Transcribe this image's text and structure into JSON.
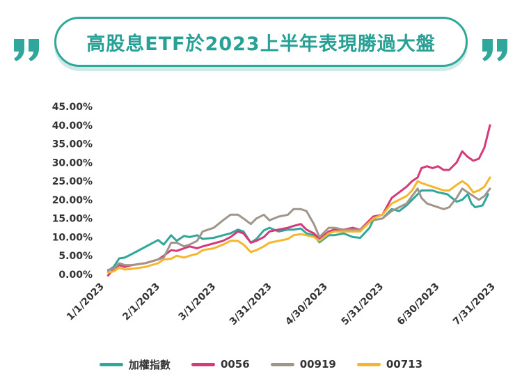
{
  "title": "高股息ETF於2023上半年表現勝過大盤",
  "colors": {
    "accent": "#2fa79a"
  },
  "chart_data": {
    "type": "line",
    "x_ticks": [
      "1/1/2023",
      "2/1/2023",
      "3/1/2023",
      "3/31/2023",
      "4/30/2023",
      "5/31/2023",
      "6/30/2023",
      "7/31/2023"
    ],
    "x_range": [
      "2023-01-01",
      "2023-07-31"
    ],
    "y_ticks": [
      "0.00%",
      "5.00%",
      "10.00%",
      "15.00%",
      "20.00%",
      "25.00%",
      "30.00%",
      "35.00%",
      "40.00%",
      "45.00%"
    ],
    "ylim": [
      0,
      45
    ],
    "grid": false,
    "legend_position": "bottom",
    "series": [
      {
        "name": "加權指數",
        "color": "#2fa79a",
        "points": [
          [
            "2023-01-03",
            1.0
          ],
          [
            "2023-01-06",
            2.0
          ],
          [
            "2023-01-09",
            4.3
          ],
          [
            "2023-01-12",
            4.5
          ],
          [
            "2023-01-16",
            5.5
          ],
          [
            "2023-01-30",
            9.2
          ],
          [
            "2023-02-02",
            8.0
          ],
          [
            "2023-02-06",
            10.5
          ],
          [
            "2023-02-09",
            9.0
          ],
          [
            "2023-02-13",
            10.3
          ],
          [
            "2023-02-16",
            10.0
          ],
          [
            "2023-02-20",
            10.5
          ],
          [
            "2023-02-23",
            9.5
          ],
          [
            "2023-03-01",
            9.8
          ],
          [
            "2023-03-06",
            10.5
          ],
          [
            "2023-03-10",
            11.0
          ],
          [
            "2023-03-14",
            12.0
          ],
          [
            "2023-03-17",
            11.5
          ],
          [
            "2023-03-21",
            8.5
          ],
          [
            "2023-03-24",
            9.5
          ],
          [
            "2023-03-28",
            11.8
          ],
          [
            "2023-03-31",
            12.5
          ],
          [
            "2023-04-05",
            11.5
          ],
          [
            "2023-04-10",
            12.0
          ],
          [
            "2023-04-13",
            12.0
          ],
          [
            "2023-04-17",
            12.3
          ],
          [
            "2023-04-20",
            11.0
          ],
          [
            "2023-04-24",
            10.5
          ],
          [
            "2023-04-27",
            8.6
          ],
          [
            "2023-05-02",
            10.5
          ],
          [
            "2023-05-05",
            10.5
          ],
          [
            "2023-05-10",
            11.0
          ],
          [
            "2023-05-15",
            10.0
          ],
          [
            "2023-05-19",
            9.8
          ],
          [
            "2023-05-24",
            12.5
          ],
          [
            "2023-05-26",
            14.5
          ],
          [
            "2023-05-31",
            15.0
          ],
          [
            "2023-06-05",
            17.5
          ],
          [
            "2023-06-09",
            17.0
          ],
          [
            "2023-06-13",
            18.5
          ],
          [
            "2023-06-16",
            20.0
          ],
          [
            "2023-06-19",
            21.5
          ],
          [
            "2023-06-21",
            22.5
          ],
          [
            "2023-06-27",
            22.5
          ],
          [
            "2023-06-30",
            22.0
          ],
          [
            "2023-07-05",
            21.5
          ],
          [
            "2023-07-10",
            19.5
          ],
          [
            "2023-07-13",
            20.0
          ],
          [
            "2023-07-16",
            21.5
          ],
          [
            "2023-07-18",
            19.0
          ],
          [
            "2023-07-20",
            18.0
          ],
          [
            "2023-07-24",
            18.5
          ],
          [
            "2023-07-27",
            21.5
          ]
        ]
      },
      {
        "name": "0056",
        "color": "#d6397a",
        "points": [
          [
            "2023-01-03",
            -0.3
          ],
          [
            "2023-01-06",
            1.5
          ],
          [
            "2023-01-09",
            2.5
          ],
          [
            "2023-01-12",
            2.0
          ],
          [
            "2023-01-16",
            2.5
          ],
          [
            "2023-01-23",
            3.0
          ],
          [
            "2023-01-30",
            4.0
          ],
          [
            "2023-02-02",
            5.0
          ],
          [
            "2023-02-06",
            6.5
          ],
          [
            "2023-02-09",
            6.3
          ],
          [
            "2023-02-13",
            7.0
          ],
          [
            "2023-02-16",
            7.5
          ],
          [
            "2023-02-20",
            7.0
          ],
          [
            "2023-02-23",
            7.5
          ],
          [
            "2023-03-01",
            8.3
          ],
          [
            "2023-03-06",
            9.0
          ],
          [
            "2023-03-10",
            10.0
          ],
          [
            "2023-03-14",
            11.5
          ],
          [
            "2023-03-17",
            11.0
          ],
          [
            "2023-03-21",
            8.5
          ],
          [
            "2023-03-24",
            9.0
          ],
          [
            "2023-03-28",
            10.0
          ],
          [
            "2023-03-31",
            11.5
          ],
          [
            "2023-04-05",
            12.0
          ],
          [
            "2023-04-10",
            12.5
          ],
          [
            "2023-04-13",
            13.0
          ],
          [
            "2023-04-17",
            13.5
          ],
          [
            "2023-04-20",
            12.0
          ],
          [
            "2023-04-24",
            11.0
          ],
          [
            "2023-04-27",
            9.5
          ],
          [
            "2023-05-02",
            11.5
          ],
          [
            "2023-05-05",
            12.0
          ],
          [
            "2023-05-10",
            12.0
          ],
          [
            "2023-05-15",
            12.5
          ],
          [
            "2023-05-19",
            12.0
          ],
          [
            "2023-05-24",
            14.5
          ],
          [
            "2023-05-26",
            15.5
          ],
          [
            "2023-05-31",
            16.0
          ],
          [
            "2023-06-05",
            20.5
          ],
          [
            "2023-06-09",
            22.0
          ],
          [
            "2023-06-13",
            23.5
          ],
          [
            "2023-06-16",
            25.0
          ],
          [
            "2023-06-19",
            26.0
          ],
          [
            "2023-06-21",
            28.5
          ],
          [
            "2023-06-24",
            29.0
          ],
          [
            "2023-06-27",
            28.5
          ],
          [
            "2023-06-30",
            29.0
          ],
          [
            "2023-07-03",
            28.0
          ],
          [
            "2023-07-06",
            28.0
          ],
          [
            "2023-07-10",
            30.0
          ],
          [
            "2023-07-13",
            33.0
          ],
          [
            "2023-07-16",
            31.5
          ],
          [
            "2023-07-19",
            30.5
          ],
          [
            "2023-07-22",
            31.0
          ],
          [
            "2023-07-25",
            34.0
          ],
          [
            "2023-07-28",
            40.0
          ]
        ]
      },
      {
        "name": "00919",
        "color": "#a0958b",
        "points": [
          [
            "2023-01-03",
            1.2
          ],
          [
            "2023-01-06",
            1.5
          ],
          [
            "2023-01-09",
            3.0
          ],
          [
            "2023-01-12",
            2.5
          ],
          [
            "2023-01-16",
            2.5
          ],
          [
            "2023-01-23",
            3.0
          ],
          [
            "2023-01-30",
            4.0
          ],
          [
            "2023-02-02",
            4.5
          ],
          [
            "2023-02-06",
            8.5
          ],
          [
            "2023-02-09",
            8.5
          ],
          [
            "2023-02-13",
            7.5
          ],
          [
            "2023-02-16",
            8.0
          ],
          [
            "2023-02-20",
            9.0
          ],
          [
            "2023-02-23",
            11.5
          ],
          [
            "2023-03-01",
            12.5
          ],
          [
            "2023-03-06",
            14.5
          ],
          [
            "2023-03-10",
            16.0
          ],
          [
            "2023-03-14",
            16.0
          ],
          [
            "2023-03-17",
            15.0
          ],
          [
            "2023-03-21",
            13.5
          ],
          [
            "2023-03-24",
            15.0
          ],
          [
            "2023-03-28",
            16.0
          ],
          [
            "2023-03-31",
            14.5
          ],
          [
            "2023-04-05",
            15.5
          ],
          [
            "2023-04-10",
            16.0
          ],
          [
            "2023-04-13",
            17.5
          ],
          [
            "2023-04-17",
            17.5
          ],
          [
            "2023-04-20",
            17.0
          ],
          [
            "2023-04-24",
            13.5
          ],
          [
            "2023-04-27",
            10.0
          ],
          [
            "2023-05-02",
            12.5
          ],
          [
            "2023-05-05",
            12.5
          ],
          [
            "2023-05-10",
            12.0
          ],
          [
            "2023-05-15",
            12.0
          ],
          [
            "2023-05-19",
            12.0
          ],
          [
            "2023-05-24",
            14.0
          ],
          [
            "2023-05-26",
            14.5
          ],
          [
            "2023-05-31",
            15.0
          ],
          [
            "2023-06-05",
            17.0
          ],
          [
            "2023-06-09",
            18.0
          ],
          [
            "2023-06-13",
            19.0
          ],
          [
            "2023-06-16",
            21.0
          ],
          [
            "2023-06-19",
            23.0
          ],
          [
            "2023-06-21",
            20.5
          ],
          [
            "2023-06-24",
            19.0
          ],
          [
            "2023-06-27",
            18.5
          ],
          [
            "2023-06-30",
            18.0
          ],
          [
            "2023-07-03",
            17.5
          ],
          [
            "2023-07-06",
            18.0
          ],
          [
            "2023-07-10",
            20.5
          ],
          [
            "2023-07-13",
            23.0
          ],
          [
            "2023-07-16",
            22.0
          ],
          [
            "2023-07-19",
            21.0
          ],
          [
            "2023-07-22",
            20.0
          ],
          [
            "2023-07-25",
            21.0
          ],
          [
            "2023-07-28",
            23.0
          ]
        ]
      },
      {
        "name": "00713",
        "color": "#f5b62e",
        "points": [
          [
            "2023-01-03",
            0.5
          ],
          [
            "2023-01-06",
            0.8
          ],
          [
            "2023-01-09",
            1.8
          ],
          [
            "2023-01-12",
            1.3
          ],
          [
            "2023-01-16",
            1.5
          ],
          [
            "2023-01-23",
            2.0
          ],
          [
            "2023-01-30",
            3.0
          ],
          [
            "2023-02-02",
            4.0
          ],
          [
            "2023-02-06",
            4.2
          ],
          [
            "2023-02-09",
            5.0
          ],
          [
            "2023-02-13",
            4.5
          ],
          [
            "2023-02-16",
            5.0
          ],
          [
            "2023-02-20",
            5.5
          ],
          [
            "2023-02-23",
            6.5
          ],
          [
            "2023-03-01",
            7.0
          ],
          [
            "2023-03-06",
            8.0
          ],
          [
            "2023-03-10",
            9.0
          ],
          [
            "2023-03-14",
            9.0
          ],
          [
            "2023-03-17",
            8.0
          ],
          [
            "2023-03-21",
            6.0
          ],
          [
            "2023-03-24",
            6.5
          ],
          [
            "2023-03-28",
            7.5
          ],
          [
            "2023-03-31",
            8.5
          ],
          [
            "2023-04-05",
            9.0
          ],
          [
            "2023-04-10",
            9.5
          ],
          [
            "2023-04-13",
            10.5
          ],
          [
            "2023-04-17",
            10.8
          ],
          [
            "2023-04-20",
            10.5
          ],
          [
            "2023-04-24",
            10.0
          ],
          [
            "2023-04-27",
            9.0
          ],
          [
            "2023-05-02",
            11.0
          ],
          [
            "2023-05-05",
            11.5
          ],
          [
            "2023-05-10",
            11.5
          ],
          [
            "2023-05-15",
            11.5
          ],
          [
            "2023-05-19",
            11.5
          ],
          [
            "2023-05-24",
            14.0
          ],
          [
            "2023-05-26",
            15.0
          ],
          [
            "2023-05-31",
            16.0
          ],
          [
            "2023-06-05",
            19.0
          ],
          [
            "2023-06-09",
            20.0
          ],
          [
            "2023-06-13",
            21.0
          ],
          [
            "2023-06-16",
            22.5
          ],
          [
            "2023-06-19",
            25.0
          ],
          [
            "2023-06-21",
            24.5
          ],
          [
            "2023-06-24",
            24.0
          ],
          [
            "2023-06-27",
            23.5
          ],
          [
            "2023-06-30",
            23.0
          ],
          [
            "2023-07-03",
            22.5
          ],
          [
            "2023-07-06",
            22.5
          ],
          [
            "2023-07-10",
            24.0
          ],
          [
            "2023-07-13",
            25.0
          ],
          [
            "2023-07-16",
            24.0
          ],
          [
            "2023-07-19",
            22.0
          ],
          [
            "2023-07-22",
            22.5
          ],
          [
            "2023-07-25",
            23.5
          ],
          [
            "2023-07-28",
            26.0
          ]
        ]
      }
    ]
  }
}
